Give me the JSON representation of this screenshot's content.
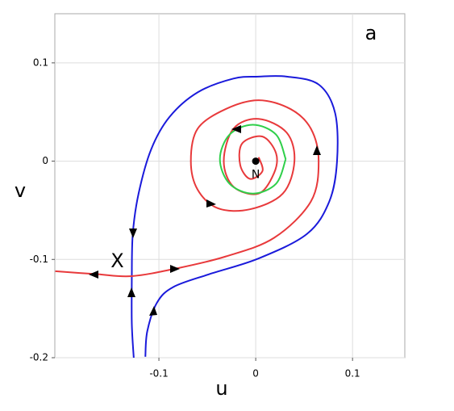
{
  "chart_data": {
    "type": "line",
    "panel_label": "a",
    "xlabel": "u",
    "ylabel": "v",
    "xlim": [
      -0.2075,
      0.154
    ],
    "ylim": [
      -0.2,
      0.15
    ],
    "xticks": [
      -0.1,
      0,
      0.1
    ],
    "yticks": [
      -0.2,
      -0.1,
      0,
      0.1
    ],
    "grid": true,
    "series": [
      {
        "color": "#1a1adb",
        "x": [
          -0.126,
          -0.128,
          -0.128
        ],
        "y": [
          -0.2,
          -0.165,
          -0.117
        ]
      },
      {
        "color": "#1a1adb",
        "x": [
          -0.114,
          -0.112,
          -0.102,
          -0.085,
          -0.048,
          0.003,
          0.053,
          0.076,
          0.084,
          0.082,
          0.065,
          0.032,
          0.003,
          -0.023,
          -0.06,
          -0.089,
          -0.108,
          -0.121,
          -0.127,
          -0.128
        ],
        "y": [
          -0.199,
          -0.173,
          -0.144,
          -0.128,
          -0.115,
          -0.099,
          -0.074,
          -0.041,
          0,
          0.049,
          0.078,
          0.086,
          0.086,
          0.084,
          0.07,
          0.045,
          0.012,
          -0.033,
          -0.074,
          -0.117
        ]
      },
      {
        "color": "#e8393b",
        "x": [
          -0.207,
          -0.164,
          -0.128,
          -0.081,
          -0.031,
          0.019,
          0.057,
          0.065,
          0.057,
          0.036,
          0.003,
          -0.031,
          -0.06,
          -0.067,
          -0.06,
          -0.039,
          -0.006,
          0.028,
          0.04,
          0.032,
          0.003,
          -0.023,
          -0.033,
          -0.023,
          0.003,
          0.019,
          0.021,
          0.007,
          -0.014,
          -0.016,
          -0.006,
          0.007,
          0.003
        ],
        "y": [
          -0.112,
          -0.115,
          -0.117,
          -0.109,
          -0.097,
          -0.078,
          -0.041,
          0,
          0.033,
          0.053,
          0.062,
          0.053,
          0.033,
          0,
          -0.029,
          -0.048,
          -0.049,
          -0.033,
          0,
          0.029,
          0.043,
          0.033,
          0,
          -0.026,
          -0.033,
          -0.012,
          0.008,
          0.025,
          0.018,
          -0.004,
          -0.018,
          -0.01,
          0.004
        ]
      },
      {
        "color": "#2fcf4a",
        "x": [
          0.031,
          0.021,
          -0.003,
          -0.027,
          -0.037,
          -0.027,
          -0.003,
          0.021,
          0.031
        ],
        "y": [
          0.002,
          0.027,
          0.037,
          0.027,
          0.002,
          -0.023,
          -0.033,
          -0.023,
          0.002
        ]
      }
    ],
    "equilibrium": {
      "label": "N",
      "x": 0,
      "y": 0
    },
    "saddle": {
      "label": "X",
      "x": -0.128,
      "y": -0.117
    }
  }
}
